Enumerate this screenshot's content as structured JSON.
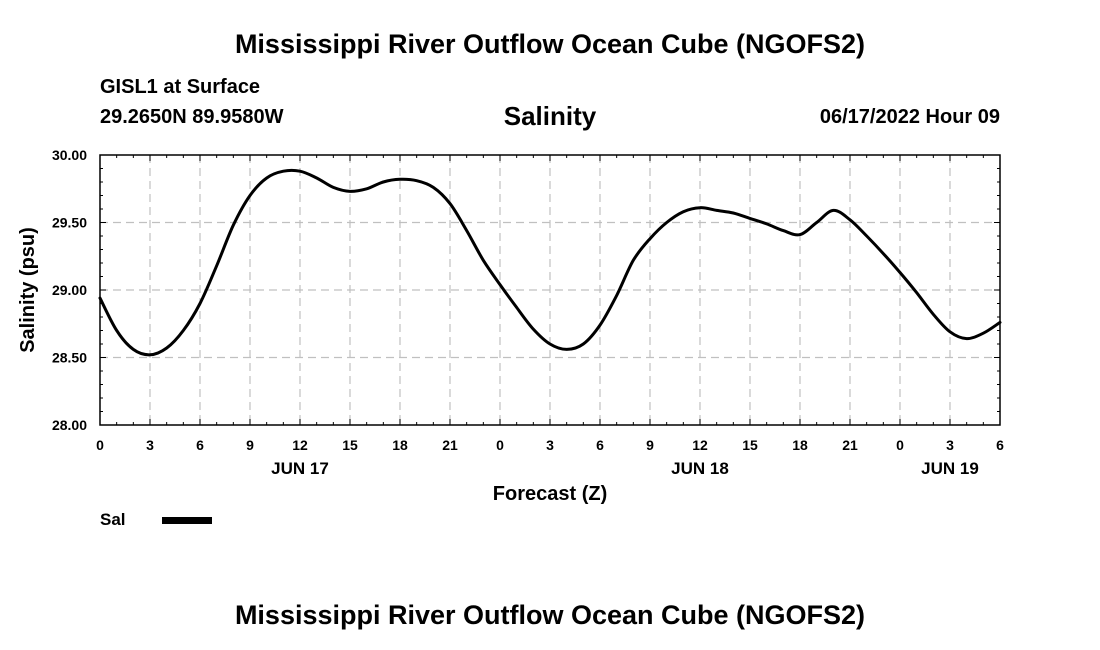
{
  "header": {
    "title": "Mississippi River Outflow Ocean Cube (NGOFS2)",
    "station": "GISL1 at Surface",
    "coords": "29.2650N  89.9580W",
    "datetime": "06/17/2022 Hour 09"
  },
  "footer": {
    "title": "Mississippi River Outflow Ocean Cube (NGOFS2)"
  },
  "legend": {
    "label": "Sal"
  },
  "colors": {
    "line": "#000000",
    "grid": "#c0c0c0"
  },
  "chart_data": {
    "type": "line",
    "title": "Salinity",
    "xlabel": "Forecast (Z)",
    "ylabel": "Salinity (psu)",
    "xlim": [
      0,
      54
    ],
    "ylim": [
      28.0,
      30.0
    ],
    "yticks": [
      "28.00",
      "28.50",
      "29.00",
      "29.50",
      "30.00"
    ],
    "ytick_values": [
      28.0,
      28.5,
      29.0,
      29.5,
      30.0
    ],
    "xticks": [
      "0",
      "3",
      "6",
      "9",
      "12",
      "15",
      "18",
      "21",
      "0",
      "3",
      "6",
      "9",
      "12",
      "15",
      "18",
      "21",
      "0",
      "3",
      "6"
    ],
    "xtick_values": [
      0,
      3,
      6,
      9,
      12,
      15,
      18,
      21,
      24,
      27,
      30,
      33,
      36,
      39,
      42,
      45,
      48,
      51,
      54
    ],
    "date_labels": [
      {
        "label": "JUN 17",
        "hour": 12
      },
      {
        "label": "JUN 18",
        "hour": 36
      },
      {
        "label": "JUN 19",
        "hour": 51
      }
    ],
    "grid": true,
    "series": [
      {
        "name": "Sal",
        "x": [
          0,
          1,
          2,
          3,
          4,
          5,
          6,
          7,
          8,
          9,
          10,
          11,
          12,
          13,
          14,
          15,
          16,
          17,
          18,
          19,
          20,
          21,
          22,
          23,
          24,
          25,
          26,
          27,
          28,
          29,
          30,
          31,
          32,
          33,
          34,
          35,
          36,
          37,
          38,
          39,
          40,
          41,
          42,
          43,
          44,
          45,
          46,
          47,
          48,
          49,
          50,
          51,
          52,
          53,
          54
        ],
        "values": [
          28.94,
          28.7,
          28.56,
          28.52,
          28.57,
          28.7,
          28.9,
          29.18,
          29.48,
          29.7,
          29.83,
          29.88,
          29.88,
          29.83,
          29.76,
          29.73,
          29.75,
          29.8,
          29.82,
          29.81,
          29.76,
          29.64,
          29.44,
          29.22,
          29.04,
          28.87,
          28.71,
          28.6,
          28.56,
          28.6,
          28.74,
          28.96,
          29.22,
          29.38,
          29.5,
          29.58,
          29.61,
          29.59,
          29.57,
          29.53,
          29.49,
          29.44,
          29.41,
          29.5,
          29.59,
          29.52,
          29.4,
          29.27,
          29.13,
          28.98,
          28.82,
          28.69,
          28.64,
          28.68,
          28.76
        ]
      }
    ]
  }
}
